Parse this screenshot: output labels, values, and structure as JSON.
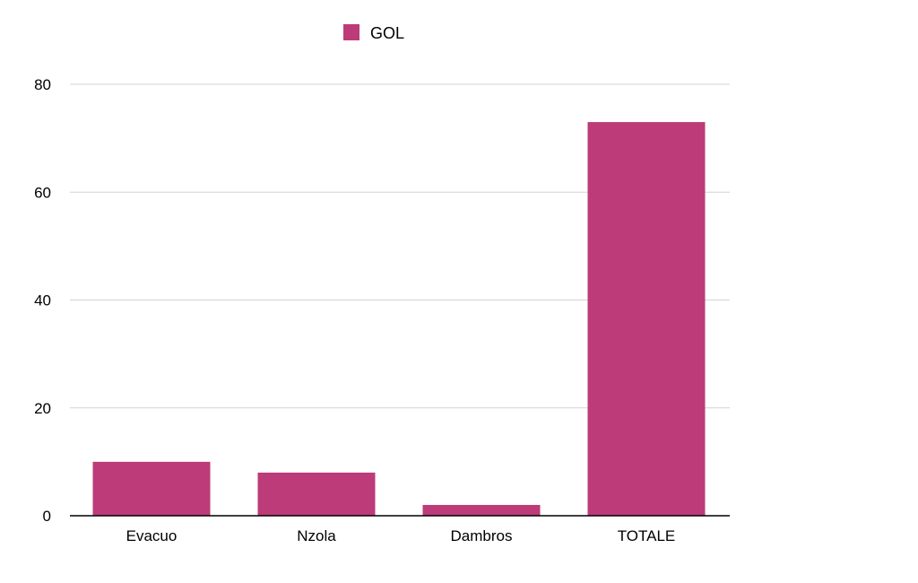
{
  "chart_data": {
    "type": "bar",
    "categories": [
      "Evacuo",
      "Nzola",
      "Dambros",
      "TOTALE"
    ],
    "series": [
      {
        "name": "GOL",
        "values": [
          10,
          8,
          2,
          73
        ]
      }
    ],
    "color": "#bc3b78",
    "ylim": [
      0,
      80
    ],
    "yticks": [
      "0",
      "20",
      "40",
      "60",
      "80"
    ],
    "grid": true,
    "legend_position": "top"
  }
}
